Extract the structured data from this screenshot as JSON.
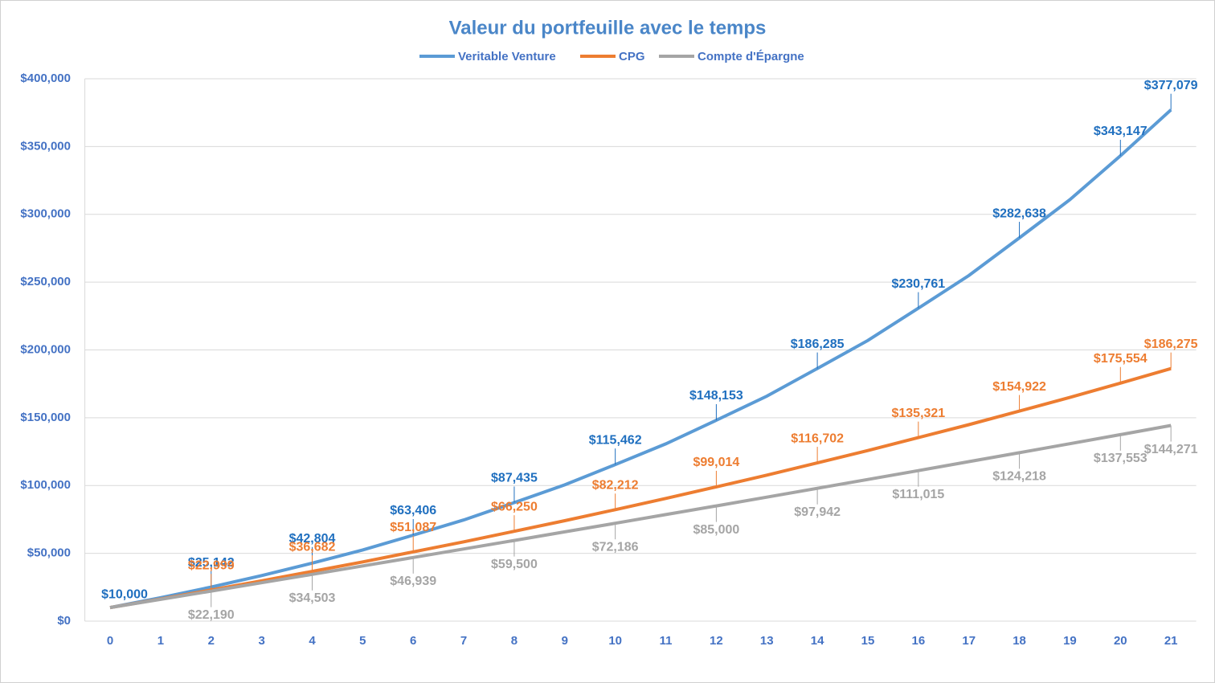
{
  "chart_data": {
    "type": "line",
    "title": "Valeur du portfeuille avec le temps",
    "x": [
      0,
      1,
      2,
      3,
      4,
      5,
      6,
      7,
      8,
      9,
      10,
      11,
      12,
      13,
      14,
      15,
      16,
      17,
      18,
      19,
      20,
      21
    ],
    "xlim": [
      -0.5,
      21.5
    ],
    "ylim": [
      0,
      400000
    ],
    "yticks": [
      {
        "value": 0,
        "label": "$0"
      },
      {
        "value": 50000,
        "label": "$50,000"
      },
      {
        "value": 100000,
        "label": "$100,000"
      },
      {
        "value": 150000,
        "label": "$150,000"
      },
      {
        "value": 200000,
        "label": "$200,000"
      },
      {
        "value": 250000,
        "label": "$250,000"
      },
      {
        "value": 300000,
        "label": "$300,000"
      },
      {
        "value": 350000,
        "label": "$350,000"
      },
      {
        "value": 400000,
        "label": "$400,000"
      }
    ],
    "grid": true,
    "legend": "top",
    "series": [
      {
        "name": "Veritable Venture",
        "color": "#5b9bd5",
        "label_color": "#1f6fbf",
        "values": [
          10000,
          17300,
          25142,
          33600,
          42804,
          52500,
          63406,
          74600,
          87435,
          100500,
          115462,
          130700,
          148153,
          165900,
          186285,
          207000,
          230761,
          254900,
          282638,
          310800,
          343147,
          377079
        ],
        "value_labels": [
          "$10,000",
          null,
          "$25,142",
          null,
          "$42,804",
          null,
          "$63,406",
          null,
          "$87,435",
          null,
          "$115,462",
          null,
          "$148,153",
          null,
          "$186,285",
          null,
          "$230,761",
          null,
          "$282,638",
          null,
          "$343,147",
          "$377,079"
        ]
      },
      {
        "name": "CPG",
        "color": "#ed7d31",
        "label_color": "#ed7d31",
        "values": [
          10000,
          16300,
          22999,
          29700,
          36682,
          43700,
          51087,
          58500,
          66250,
          74100,
          82212,
          90500,
          99014,
          107700,
          116702,
          125800,
          135321,
          144900,
          154922,
          165000,
          175554,
          186275
        ],
        "value_labels": [
          null,
          null,
          "$22,999",
          null,
          "$36,682",
          null,
          "$51,087",
          null,
          "$66,250",
          null,
          "$82,212",
          null,
          "$99,014",
          null,
          "$116,702",
          null,
          "$135,321",
          null,
          "$154,922",
          null,
          "$175,554",
          "$186,275"
        ]
      },
      {
        "name": "Compte d'Épargne",
        "color": "#a5a5a5",
        "label_color": "#a5a5a5",
        "values": [
          10000,
          16070,
          22190,
          28330,
          34503,
          40710,
          46939,
          53200,
          59500,
          65830,
          72186,
          78580,
          85000,
          91460,
          97942,
          104460,
          111015,
          117600,
          124218,
          130870,
          137553,
          144271
        ],
        "value_labels": [
          null,
          null,
          "$22,190",
          null,
          "$34,503",
          null,
          "$46,939",
          null,
          "$59,500",
          null,
          "$72,186",
          null,
          "$85,000",
          null,
          "$97,942",
          null,
          "$111,015",
          null,
          "$124,218",
          null,
          "$137,553",
          "$144,271"
        ]
      }
    ]
  }
}
